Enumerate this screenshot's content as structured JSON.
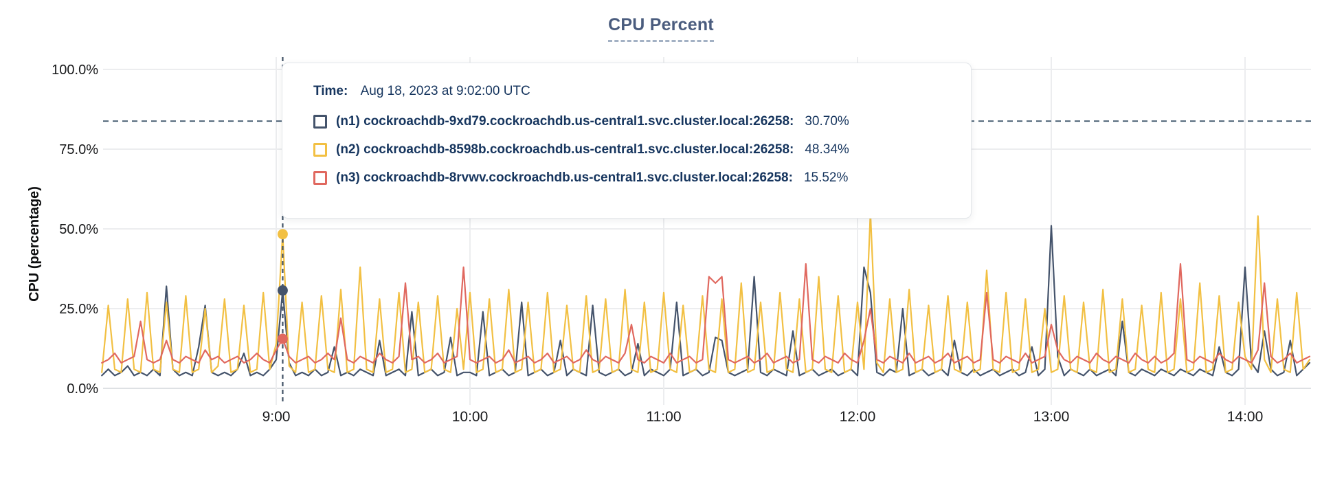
{
  "title": "CPU Percent",
  "tooltip": {
    "time_label": "Time:",
    "time_value": "Aug 18, 2023 at 9:02:00 UTC",
    "rows": [
      {
        "label": "(n1) cockroachdb-9xd79.cockroachdb.us-central1.svc.cluster.local:26258:",
        "value": "30.70%",
        "color": "#44536B"
      },
      {
        "label": "(n2) cockroachdb-8598b.cockroachdb.us-central1.svc.cluster.local:26258:",
        "value": "48.34%",
        "color": "#F2C043"
      },
      {
        "label": "(n3) cockroachdb-8rvwv.cockroachdb.us-central1.svc.cluster.local:26258:",
        "value": "15.52%",
        "color": "#E0685F"
      }
    ]
  },
  "chart_data": {
    "type": "line",
    "title": "CPU Percent",
    "xlabel": "",
    "ylabel": "CPU (percentage)",
    "ylim": [
      0,
      100
    ],
    "grid": true,
    "x_unit": "minutes since midnight UTC (Aug 18, 2023)",
    "x_range_minutes": [
      486,
      860
    ],
    "x_start_minutes": 486,
    "x_step_minutes": 2,
    "x_ticks": [
      {
        "minutes": 540,
        "label": "9:00"
      },
      {
        "minutes": 600,
        "label": "10:00"
      },
      {
        "minutes": 660,
        "label": "11:00"
      },
      {
        "minutes": 720,
        "label": "12:00"
      },
      {
        "minutes": 780,
        "label": "13:00"
      },
      {
        "minutes": 840,
        "label": "14:00"
      }
    ],
    "y_ticks": [
      {
        "value": 0,
        "label": "0.0%"
      },
      {
        "value": 25,
        "label": "25.0%"
      },
      {
        "value": 50,
        "label": "50.0%"
      },
      {
        "value": 75,
        "label": "75.0%"
      },
      {
        "value": 100,
        "label": "100.0%"
      }
    ],
    "threshold_value": 83.8,
    "hover": {
      "minutes": 542,
      "time_label": "Aug 18, 2023 at 9:02:00 UTC",
      "values": [
        30.7,
        48.34,
        15.52
      ]
    },
    "series": [
      {
        "name": "(n1) cockroachdb-9xd79.cockroachdb.us-central1.svc.cluster.local:26258",
        "color": "#44536B",
        "values": [
          4,
          6,
          4,
          5,
          7,
          4,
          5,
          4,
          6,
          4,
          32,
          6,
          4,
          5,
          4,
          13,
          26,
          5,
          4,
          5,
          4,
          6,
          11,
          4,
          5,
          4,
          6,
          9,
          30.7,
          8,
          4,
          5,
          4,
          6,
          4,
          5,
          13,
          4,
          5,
          4,
          6,
          5,
          4,
          15,
          4,
          5,
          6,
          4,
          24,
          4,
          5,
          6,
          4,
          5,
          16,
          4,
          5,
          5,
          4,
          24,
          4,
          5,
          6,
          4,
          5,
          27,
          4,
          5,
          6,
          4,
          5,
          15,
          4,
          6,
          5,
          4,
          26,
          5,
          4,
          5,
          6,
          4,
          5,
          14,
          4,
          6,
          5,
          4,
          6,
          27,
          4,
          5,
          6,
          4,
          5,
          16,
          15,
          5,
          4,
          5,
          6,
          35,
          5,
          4,
          6,
          5,
          4,
          18,
          4,
          5,
          6,
          4,
          5,
          6,
          4,
          5,
          6,
          4,
          38,
          30,
          5,
          4,
          6,
          5,
          25,
          4,
          5,
          6,
          4,
          5,
          6,
          4,
          15,
          5,
          4,
          6,
          4,
          5,
          6,
          4,
          5,
          6,
          4,
          5,
          13,
          4,
          6,
          51,
          10,
          4,
          6,
          5,
          4,
          6,
          4,
          5,
          6,
          4,
          21,
          5,
          4,
          6,
          5,
          4,
          6,
          5,
          4,
          6,
          5,
          4,
          6,
          5,
          4,
          13,
          5,
          4,
          6,
          38,
          8,
          5,
          18,
          6,
          4,
          5,
          15,
          4,
          6,
          8
        ]
      },
      {
        "name": "(n2) cockroachdb-8598b.cockroachdb.us-central1.svc.cluster.local:26258",
        "color": "#F2C043",
        "values": [
          5,
          26,
          6,
          5,
          28,
          6,
          5,
          30,
          6,
          5,
          27,
          6,
          5,
          29,
          5,
          6,
          25,
          5,
          7,
          28,
          5,
          6,
          26,
          5,
          6,
          30,
          6,
          14,
          48.34,
          7,
          5,
          27,
          5,
          6,
          29,
          6,
          5,
          31,
          5,
          6,
          38,
          6,
          5,
          28,
          5,
          6,
          30,
          5,
          6,
          27,
          5,
          6,
          29,
          6,
          5,
          25,
          6,
          30,
          5,
          6,
          28,
          5,
          6,
          31,
          5,
          6,
          27,
          5,
          6,
          30,
          5,
          6,
          26,
          6,
          5,
          29,
          5,
          6,
          28,
          5,
          6,
          31,
          6,
          5,
          27,
          5,
          6,
          30,
          6,
          5,
          26,
          5,
          6,
          29,
          6,
          5,
          28,
          5,
          6,
          33,
          5,
          6,
          27,
          5,
          6,
          30,
          6,
          5,
          28,
          5,
          6,
          35,
          6,
          5,
          29,
          5,
          6,
          27,
          6,
          55,
          8,
          5,
          28,
          5,
          6,
          31,
          5,
          6,
          26,
          5,
          6,
          29,
          6,
          5,
          27,
          5,
          6,
          37,
          6,
          5,
          30,
          5,
          6,
          28,
          5,
          6,
          25,
          5,
          6,
          29,
          6,
          5,
          27,
          6,
          5,
          31,
          5,
          6,
          28,
          5,
          6,
          26,
          6,
          5,
          30,
          5,
          6,
          28,
          5,
          6,
          33,
          5,
          6,
          29,
          5,
          6,
          27,
          10,
          6,
          54,
          9,
          5,
          28,
          6,
          5,
          30,
          6,
          9
        ]
      },
      {
        "name": "(n3) cockroachdb-8rvwv.cockroachdb.us-central1.svc.cluster.local:26258",
        "color": "#E0685F",
        "values": [
          8,
          9,
          11,
          8,
          9,
          10,
          21,
          9,
          8,
          9,
          15,
          9,
          8,
          10,
          9,
          8,
          12,
          9,
          10,
          8,
          9,
          10,
          8,
          9,
          11,
          9,
          8,
          12,
          15.52,
          10,
          8,
          9,
          10,
          8,
          9,
          11,
          9,
          22,
          9,
          8,
          10,
          9,
          8,
          11,
          9,
          8,
          10,
          33,
          9,
          10,
          8,
          9,
          11,
          8,
          9,
          10,
          38,
          9,
          8,
          9,
          10,
          8,
          9,
          12,
          8,
          9,
          10,
          8,
          9,
          11,
          8,
          9,
          10,
          8,
          9,
          12,
          9,
          8,
          10,
          9,
          8,
          11,
          20,
          9,
          8,
          10,
          9,
          8,
          11,
          8,
          9,
          10,
          8,
          9,
          35,
          33,
          35,
          9,
          8,
          9,
          10,
          8,
          9,
          11,
          8,
          9,
          10,
          8,
          9,
          39,
          9,
          8,
          10,
          9,
          8,
          11,
          9,
          8,
          15,
          25,
          9,
          8,
          10,
          9,
          8,
          11,
          8,
          9,
          10,
          8,
          9,
          11,
          8,
          9,
          10,
          8,
          9,
          30,
          9,
          8,
          10,
          9,
          8,
          11,
          8,
          9,
          10,
          20,
          12,
          9,
          8,
          10,
          9,
          8,
          11,
          9,
          8,
          10,
          9,
          8,
          11,
          9,
          8,
          10,
          8,
          9,
          11,
          39,
          9,
          8,
          10,
          9,
          8,
          11,
          9,
          8,
          10,
          9,
          8,
          12,
          33,
          10,
          8,
          9,
          11,
          8,
          9,
          10
        ]
      }
    ]
  }
}
